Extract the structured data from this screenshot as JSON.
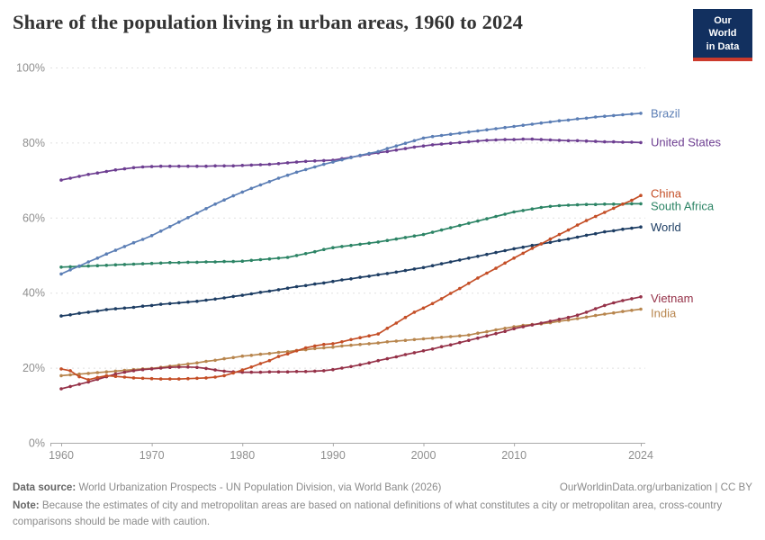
{
  "header": {
    "title": "Share of the population living in urban areas, 1960 to 2024",
    "logo_line1": "Our World",
    "logo_line2": "in Data"
  },
  "footer": {
    "source_label": "Data source:",
    "source_text": " World Urbanization Prospects - UN Population Division, via World Bank (2026)",
    "attribution": "OurWorldinData.org/urbanization | CC BY",
    "note_label": "Note:",
    "note_text": " Because the estimates of city and metropolitan areas are based on national definitions of what constitutes a city or metropolitan area, cross-country comparisons should be made with caution."
  },
  "colors": {
    "logo_navy": "#12305F",
    "logo_red": "#CC3A2C",
    "grid": "#e0e0e0",
    "axis": "#a9a9a9",
    "tick_text": "#8f8f8f"
  },
  "chart_data": {
    "type": "line",
    "title": "Share of the population living in urban areas, 1960 to 2024",
    "xlabel": "",
    "ylabel": "",
    "ylim": [
      0,
      100
    ],
    "xlim": [
      1960,
      2024
    ],
    "grid": "horizontal-dashed",
    "legend_position": "right-end-labels",
    "x_ticks": [
      {
        "value": 1960,
        "label": "1960"
      },
      {
        "value": 1970,
        "label": "1970"
      },
      {
        "value": 1980,
        "label": "1980"
      },
      {
        "value": 1990,
        "label": "1990"
      },
      {
        "value": 2000,
        "label": "2000"
      },
      {
        "value": 2010,
        "label": "2010"
      },
      {
        "value": 2024,
        "label": "2024"
      }
    ],
    "y_ticks": [
      {
        "value": 0,
        "label": "0%"
      },
      {
        "value": 20,
        "label": "20%"
      },
      {
        "value": 40,
        "label": "40%"
      },
      {
        "value": 60,
        "label": "60%"
      },
      {
        "value": 80,
        "label": "80%"
      },
      {
        "value": 100,
        "label": "100%"
      }
    ],
    "years": [
      1960,
      1961,
      1962,
      1963,
      1964,
      1965,
      1966,
      1967,
      1968,
      1969,
      1970,
      1971,
      1972,
      1973,
      1974,
      1975,
      1976,
      1977,
      1978,
      1979,
      1980,
      1981,
      1982,
      1983,
      1984,
      1985,
      1986,
      1987,
      1988,
      1989,
      1990,
      1991,
      1992,
      1993,
      1994,
      1995,
      1996,
      1997,
      1998,
      1999,
      2000,
      2001,
      2002,
      2003,
      2004,
      2005,
      2006,
      2007,
      2008,
      2009,
      2010,
      2011,
      2012,
      2013,
      2014,
      2015,
      2016,
      2017,
      2018,
      2019,
      2020,
      2021,
      2022,
      2023,
      2024
    ],
    "series": [
      {
        "key": "brazil",
        "name": "Brazil",
        "color": "#5B7EB5",
        "values": [
          45.0,
          46.1,
          47.1,
          48.2,
          49.2,
          50.3,
          51.3,
          52.3,
          53.3,
          54.2,
          55.2,
          56.4,
          57.6,
          58.8,
          60.0,
          61.2,
          62.4,
          63.6,
          64.7,
          65.8,
          66.8,
          67.8,
          68.7,
          69.6,
          70.5,
          71.3,
          72.1,
          72.8,
          73.5,
          74.2,
          74.8,
          75.4,
          76.0,
          76.6,
          77.1,
          77.6,
          78.4,
          79.1,
          79.8,
          80.5,
          81.2,
          81.6,
          81.9,
          82.2,
          82.5,
          82.8,
          83.1,
          83.4,
          83.7,
          84.0,
          84.3,
          84.6,
          84.9,
          85.2,
          85.5,
          85.8,
          86.0,
          86.3,
          86.5,
          86.8,
          87.0,
          87.2,
          87.4,
          87.6,
          87.8
        ]
      },
      {
        "key": "united_states",
        "name": "United States",
        "color": "#6D3E91",
        "values": [
          70.0,
          70.5,
          71.0,
          71.5,
          71.9,
          72.3,
          72.7,
          73.0,
          73.3,
          73.5,
          73.6,
          73.7,
          73.7,
          73.7,
          73.7,
          73.7,
          73.7,
          73.8,
          73.8,
          73.8,
          73.9,
          74.0,
          74.1,
          74.2,
          74.4,
          74.6,
          74.8,
          75.0,
          75.1,
          75.2,
          75.3,
          75.7,
          76.1,
          76.5,
          76.9,
          77.3,
          77.6,
          78.0,
          78.4,
          78.8,
          79.1,
          79.4,
          79.6,
          79.8,
          80.0,
          80.2,
          80.4,
          80.6,
          80.7,
          80.8,
          80.8,
          80.9,
          80.9,
          80.8,
          80.7,
          80.6,
          80.5,
          80.5,
          80.4,
          80.3,
          80.2,
          80.2,
          80.1,
          80.1,
          80.0
        ]
      },
      {
        "key": "china",
        "name": "China",
        "color": "#C44E26",
        "values": [
          19.7,
          19.2,
          17.6,
          16.8,
          17.4,
          17.9,
          17.7,
          17.5,
          17.3,
          17.2,
          17.1,
          17.0,
          17.0,
          17.0,
          17.1,
          17.2,
          17.3,
          17.5,
          17.9,
          18.6,
          19.4,
          20.2,
          21.1,
          21.9,
          23.0,
          23.7,
          24.5,
          25.3,
          25.8,
          26.2,
          26.4,
          26.9,
          27.5,
          28.0,
          28.5,
          29.0,
          30.5,
          31.9,
          33.4,
          34.8,
          35.9,
          37.1,
          38.4,
          39.8,
          41.1,
          42.5,
          43.9,
          45.2,
          46.5,
          47.9,
          49.2,
          50.5,
          51.8,
          53.0,
          54.3,
          55.5,
          56.7,
          58.0,
          59.2,
          60.3,
          61.4,
          62.5,
          63.6,
          64.6,
          65.9
        ]
      },
      {
        "key": "south_africa",
        "name": "South Africa",
        "color": "#2C8465",
        "values": [
          46.8,
          46.9,
          47.0,
          47.1,
          47.2,
          47.3,
          47.4,
          47.5,
          47.6,
          47.7,
          47.8,
          47.9,
          48.0,
          48.0,
          48.1,
          48.1,
          48.2,
          48.2,
          48.3,
          48.3,
          48.4,
          48.6,
          48.8,
          49.0,
          49.2,
          49.4,
          49.9,
          50.4,
          50.9,
          51.5,
          52.0,
          52.3,
          52.6,
          52.9,
          53.2,
          53.5,
          53.9,
          54.3,
          54.7,
          55.1,
          55.5,
          56.1,
          56.7,
          57.3,
          57.9,
          58.5,
          59.1,
          59.7,
          60.3,
          60.9,
          61.5,
          61.9,
          62.3,
          62.7,
          63.0,
          63.2,
          63.3,
          63.4,
          63.5,
          63.5,
          63.6,
          63.6,
          63.6,
          63.7,
          63.7
        ]
      },
      {
        "key": "world",
        "name": "World",
        "color": "#1D3D63",
        "values": [
          33.8,
          34.1,
          34.5,
          34.8,
          35.1,
          35.5,
          35.7,
          35.9,
          36.1,
          36.4,
          36.6,
          36.9,
          37.1,
          37.3,
          37.5,
          37.7,
          38.0,
          38.3,
          38.6,
          39.0,
          39.3,
          39.7,
          40.1,
          40.4,
          40.8,
          41.2,
          41.6,
          41.9,
          42.3,
          42.6,
          43.0,
          43.4,
          43.7,
          44.1,
          44.4,
          44.8,
          45.1,
          45.5,
          45.9,
          46.3,
          46.7,
          47.2,
          47.7,
          48.2,
          48.7,
          49.2,
          49.7,
          50.2,
          50.7,
          51.2,
          51.7,
          52.1,
          52.6,
          53.0,
          53.4,
          53.9,
          54.3,
          54.8,
          55.3,
          55.7,
          56.2,
          56.5,
          56.9,
          57.2,
          57.5
        ]
      },
      {
        "key": "vietnam",
        "name": "Vietnam",
        "color": "#953148",
        "values": [
          14.4,
          15.0,
          15.6,
          16.2,
          16.9,
          17.6,
          18.3,
          18.8,
          19.2,
          19.5,
          19.7,
          19.9,
          20.1,
          20.2,
          20.2,
          20.1,
          19.8,
          19.4,
          19.1,
          18.9,
          18.8,
          18.8,
          18.8,
          18.9,
          18.9,
          18.9,
          19.0,
          19.0,
          19.1,
          19.2,
          19.5,
          19.9,
          20.3,
          20.8,
          21.3,
          21.9,
          22.4,
          22.9,
          23.5,
          24.0,
          24.5,
          25.0,
          25.6,
          26.1,
          26.7,
          27.3,
          27.9,
          28.5,
          29.1,
          29.7,
          30.4,
          30.9,
          31.4,
          31.9,
          32.4,
          32.9,
          33.4,
          34.0,
          34.8,
          35.7,
          36.6,
          37.3,
          37.9,
          38.4,
          38.9
        ]
      },
      {
        "key": "india",
        "name": "India",
        "color": "#B8864E",
        "values": [
          17.9,
          18.1,
          18.3,
          18.5,
          18.7,
          18.9,
          19.1,
          19.3,
          19.5,
          19.7,
          19.8,
          20.1,
          20.4,
          20.7,
          21.0,
          21.3,
          21.7,
          22.0,
          22.4,
          22.7,
          23.1,
          23.3,
          23.6,
          23.8,
          24.1,
          24.3,
          24.6,
          24.8,
          25.1,
          25.3,
          25.5,
          25.8,
          26.0,
          26.2,
          26.4,
          26.6,
          26.9,
          27.1,
          27.3,
          27.5,
          27.7,
          27.9,
          28.1,
          28.3,
          28.5,
          28.7,
          29.2,
          29.6,
          30.1,
          30.5,
          30.9,
          31.3,
          31.5,
          31.7,
          32.0,
          32.4,
          32.7,
          33.1,
          33.5,
          33.9,
          34.3,
          34.6,
          35.0,
          35.3,
          35.6
        ]
      }
    ]
  }
}
